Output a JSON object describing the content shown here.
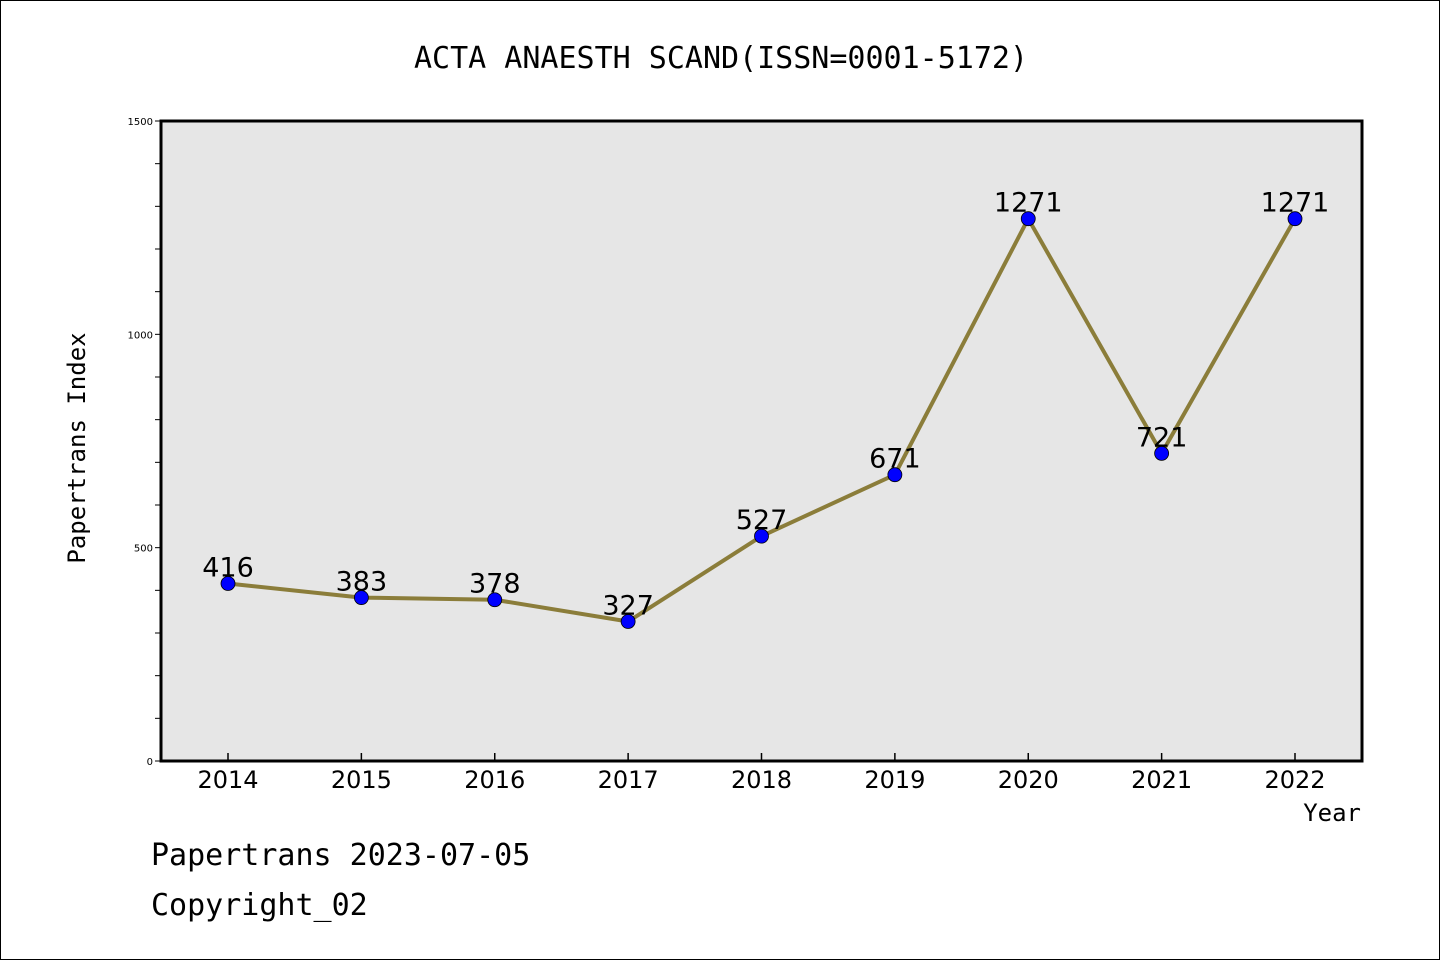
{
  "chart_data": {
    "type": "line",
    "title": "ACTA ANAESTH SCAND(ISSN=0001-5172)",
    "xlabel": "Year",
    "ylabel": "Papertrans Index",
    "categories": [
      "2014",
      "2015",
      "2016",
      "2017",
      "2018",
      "2019",
      "2020",
      "2021",
      "2022"
    ],
    "series": [
      {
        "values": [
          416,
          383,
          378,
          327,
          527,
          671,
          1271,
          721,
          1271
        ]
      }
    ],
    "data_labels": [
      "416",
      "383",
      "378",
      "327",
      "527",
      "671",
      "1271",
      "721",
      "1271"
    ],
    "ylim": [
      0,
      1500
    ],
    "yticks": [
      "0",
      "500",
      "1000",
      "1500"
    ],
    "grid": false,
    "legend": "none",
    "colors": {
      "plot_background": "#e6e6e6",
      "line": "#8b7d3a",
      "marker": "#0000ff",
      "axes": "#000000"
    }
  },
  "footer": {
    "line1": "Papertrans 2023-07-05",
    "line2": "Copyright_02"
  }
}
